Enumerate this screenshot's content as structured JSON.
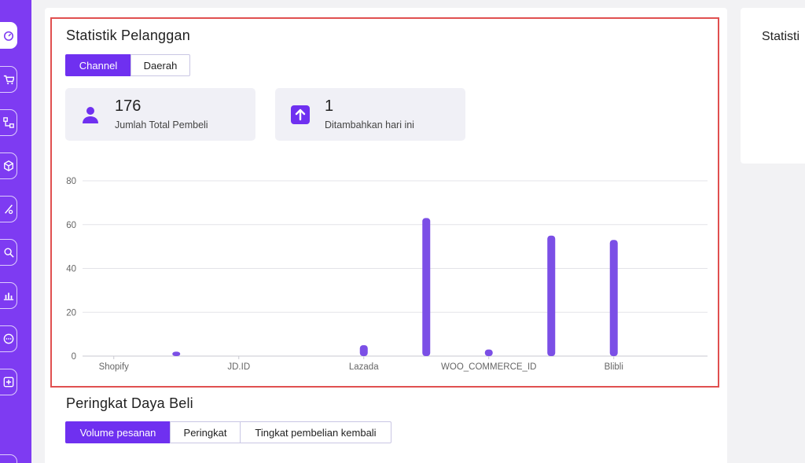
{
  "sidebar": {
    "items": [
      {
        "icon": "dashboard-icon",
        "active": true
      },
      {
        "icon": "cart-icon",
        "active": false
      },
      {
        "icon": "hierarchy-icon",
        "active": false
      },
      {
        "icon": "box-icon",
        "active": false
      },
      {
        "icon": "percent-icon",
        "active": false
      },
      {
        "icon": "search-user-icon",
        "active": false
      },
      {
        "icon": "bar-chart-icon",
        "active": false
      },
      {
        "icon": "chat-icon",
        "active": false
      },
      {
        "icon": "add-box-icon",
        "active": false
      }
    ]
  },
  "customer_stats": {
    "title": "Statistik Pelanggan",
    "tabs": [
      {
        "label": "Channel",
        "active": true
      },
      {
        "label": "Daerah",
        "active": false
      }
    ],
    "cards": [
      {
        "icon": "user-icon",
        "value": "176",
        "label": "Jumlah Total Pembeli"
      },
      {
        "icon": "arrow-up-icon",
        "value": "1",
        "label": "Ditambahkan hari ini"
      }
    ]
  },
  "purchasing_power": {
    "title": "Peringkat Daya Beli",
    "tabs": [
      {
        "label": "Volume pesanan",
        "active": true
      },
      {
        "label": "Peringkat",
        "active": false
      },
      {
        "label": "Tingkat pembelian kembali",
        "active": false
      }
    ]
  },
  "right_panel": {
    "title": "Statisti"
  },
  "colors": {
    "accent": "#6f30f0",
    "bar": "#7b4fe6",
    "sidebar": "#7e3bf2",
    "highlight": "#e05050"
  },
  "chart_data": {
    "type": "bar",
    "x": [
      0,
      1,
      2,
      3,
      4,
      5,
      6,
      7,
      8,
      9
    ],
    "values": [
      0,
      2,
      0,
      0,
      5,
      63,
      3,
      55,
      53,
      0
    ],
    "x_tick_labels": [
      "Shopify",
      "JD.ID",
      "Lazada",
      "WOO_COMMERCE_ID",
      "Blibli"
    ],
    "y_ticks": [
      0,
      20,
      40,
      60,
      80
    ],
    "ylim": [
      0,
      80
    ],
    "grid": true,
    "title": "",
    "xlabel": "",
    "ylabel": ""
  }
}
